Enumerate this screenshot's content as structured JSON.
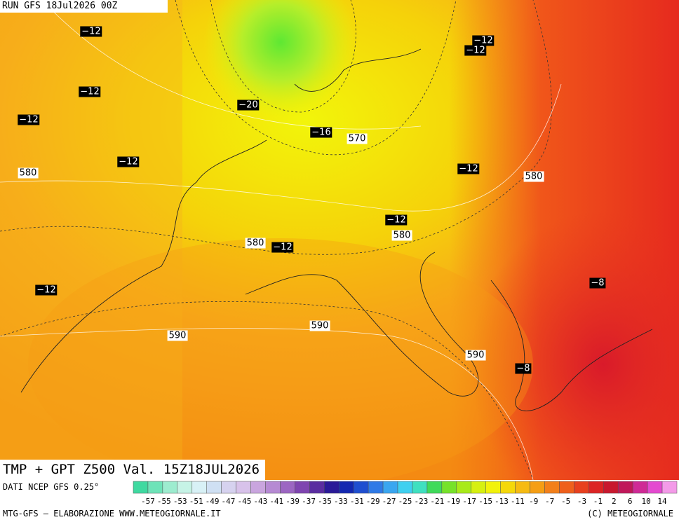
{
  "header": {
    "run": "RUN GFS 18Jul2026 00Z",
    "title": "TMP + GPT Z500 Val. 15Z18JUL2026"
  },
  "map_labels": [
    "−12",
    "−12",
    "−12",
    "−20",
    "−16",
    "570",
    "−12",
    "580",
    "−12",
    "580",
    "−12",
    "580",
    "580",
    "−12",
    "−12",
    "−8",
    "590",
    "590",
    "590",
    "−8",
    "−12",
    "−12"
  ],
  "footer": {
    "source": "DATI NCEP GFS 0.25°",
    "credit": "MTG-GFS — ELABORAZIONE WWW.METEOGIORNALE.IT",
    "copyright": "(C) METEOGIORNALE"
  },
  "colorbar": {
    "ticks": [
      -57,
      -55,
      -53,
      -51,
      -49,
      -47,
      -45,
      -43,
      -41,
      -39,
      -37,
      -35,
      -33,
      -31,
      -29,
      -27,
      -25,
      -23,
      -21,
      -19,
      -17,
      -15,
      -13,
      -11,
      -9,
      -7,
      -5,
      -3,
      -1,
      2,
      6,
      10,
      14
    ],
    "colors": [
      "#3fd9a0",
      "#6ee3b8",
      "#9deccf",
      "#c6f3e6",
      "#d8f1f6",
      "#cfe0f3",
      "#d6d2ef",
      "#d8c2ea",
      "#c9a5de",
      "#b68ad3",
      "#9c66c2",
      "#7f45b0",
      "#5a2da0",
      "#2a1a98",
      "#1328b0",
      "#1f4fd0",
      "#2f7ae6",
      "#3aa6f0",
      "#3fd0f0",
      "#3fe0c0",
      "#3fda5a",
      "#76e22a",
      "#a8ea1a",
      "#d6f010",
      "#f2f20a",
      "#f5d80a",
      "#f6bb12",
      "#f59e14",
      "#f3801a",
      "#ef601c",
      "#e8401e",
      "#dc2424",
      "#c8182e",
      "#c0185a",
      "#cf2a96",
      "#e44ad0",
      "#f39ae8"
    ]
  }
}
